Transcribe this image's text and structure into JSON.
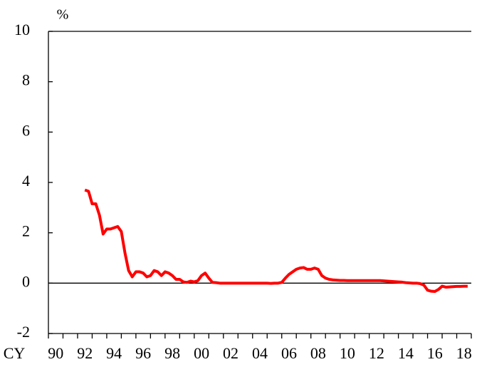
{
  "chart_data": {
    "type": "line",
    "ylabel": "%",
    "xlabel": "CY",
    "xlim": [
      1990,
      2019
    ],
    "ylim": [
      -2,
      10
    ],
    "yticks": [
      -2,
      0,
      2,
      4,
      6,
      8,
      10
    ],
    "xticks": [
      {
        "value": 1990,
        "label": "90"
      },
      {
        "value": 1992,
        "label": "92"
      },
      {
        "value": 1994,
        "label": "94"
      },
      {
        "value": 1996,
        "label": "96"
      },
      {
        "value": 1998,
        "label": "98"
      },
      {
        "value": 2000,
        "label": "00"
      },
      {
        "value": 2002,
        "label": "02"
      },
      {
        "value": 2004,
        "label": "04"
      },
      {
        "value": 2006,
        "label": "06"
      },
      {
        "value": 2008,
        "label": "08"
      },
      {
        "value": 2010,
        "label": "10"
      },
      {
        "value": 2012,
        "label": "12"
      },
      {
        "value": 2014,
        "label": "14"
      },
      {
        "value": 2016,
        "label": "16"
      },
      {
        "value": 2018,
        "label": "18"
      }
    ],
    "xminorticks": [
      1990,
      1991,
      1992,
      1993,
      1994,
      1995,
      1996,
      1997,
      1998,
      1999,
      2000,
      2001,
      2002,
      2003,
      2004,
      2005,
      2006,
      2007,
      2008,
      2009,
      2010,
      2011,
      2012,
      2013,
      2014,
      2015,
      2016,
      2017,
      2018,
      2019
    ],
    "zero_line": 0,
    "series": [
      {
        "color": "#ff0000",
        "x": [
          1992.5,
          1992.75,
          1993,
          1993.25,
          1993.5,
          1993.75,
          1994,
          1994.25,
          1994.5,
          1994.75,
          1995,
          1995.25,
          1995.5,
          1995.75,
          1996,
          1996.25,
          1996.5,
          1996.75,
          1997,
          1997.25,
          1997.5,
          1997.75,
          1998,
          1998.25,
          1998.5,
          1998.75,
          1999,
          1999.25,
          1999.5,
          1999.75,
          2000,
          2000.25,
          2000.5,
          2000.75,
          2001,
          2001.25,
          2001.5,
          2001.75,
          2002,
          2002.25,
          2002.5,
          2002.75,
          2003,
          2003.25,
          2003.5,
          2003.75,
          2004,
          2004.25,
          2004.5,
          2004.75,
          2005,
          2005.25,
          2005.5,
          2005.75,
          2006,
          2006.25,
          2006.5,
          2006.75,
          2007,
          2007.25,
          2007.5,
          2007.75,
          2008,
          2008.25,
          2008.5,
          2008.75,
          2009,
          2009.25,
          2009.5,
          2009.75,
          2010,
          2010.25,
          2010.5,
          2010.75,
          2011,
          2011.25,
          2011.5,
          2011.75,
          2012,
          2012.25,
          2012.5,
          2012.75,
          2013,
          2013.25,
          2013.5,
          2013.75,
          2014,
          2014.25,
          2014.5,
          2014.75,
          2015,
          2015.25,
          2015.5,
          2015.75,
          2016,
          2016.25,
          2016.5,
          2016.75,
          2017,
          2017.25,
          2017.5,
          2017.75,
          2018,
          2018.25,
          2018.5,
          2018.75
        ],
        "values": [
          3.7,
          3.65,
          3.15,
          3.15,
          2.7,
          1.95,
          2.15,
          2.15,
          2.2,
          2.25,
          2.05,
          1.2,
          0.5,
          0.25,
          0.45,
          0.45,
          0.4,
          0.25,
          0.3,
          0.5,
          0.45,
          0.3,
          0.45,
          0.4,
          0.3,
          0.15,
          0.15,
          0.05,
          0.03,
          0.08,
          0.05,
          0.1,
          0.3,
          0.4,
          0.2,
          0.03,
          0.02,
          0,
          0,
          0,
          0,
          0,
          0,
          0,
          0,
          0,
          0,
          0,
          0,
          0,
          0,
          -0.01,
          0,
          0,
          0.03,
          0.2,
          0.35,
          0.45,
          0.55,
          0.6,
          0.62,
          0.55,
          0.55,
          0.6,
          0.55,
          0.3,
          0.2,
          0.15,
          0.13,
          0.12,
          0.11,
          0.11,
          0.1,
          0.1,
          0.1,
          0.1,
          0.1,
          0.1,
          0.1,
          0.1,
          0.1,
          0.1,
          0.09,
          0.08,
          0.07,
          0.06,
          0.05,
          0.04,
          0.02,
          0.01,
          0,
          0,
          -0.02,
          -0.08,
          -0.28,
          -0.32,
          -0.33,
          -0.25,
          -0.12,
          -0.16,
          -0.15,
          -0.14,
          -0.13,
          -0.13,
          -0.12,
          -0.12
        ]
      }
    ]
  }
}
